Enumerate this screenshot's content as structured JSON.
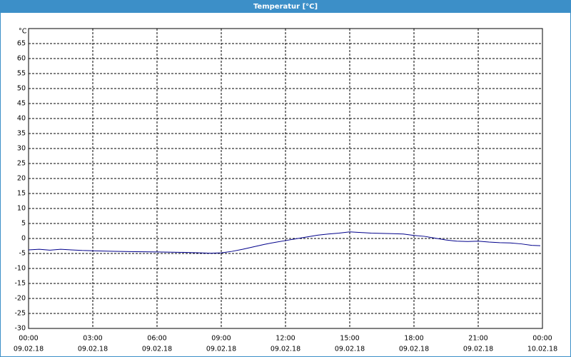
{
  "chart_data": {
    "type": "line",
    "title": "Temperatur [°C]",
    "y_label": "°C",
    "x": [
      0,
      0.5,
      1,
      1.5,
      2,
      2.5,
      3,
      3.5,
      4,
      5,
      6,
      7,
      8,
      8.5,
      9,
      9.5,
      10,
      10.5,
      11,
      11.5,
      12,
      12.5,
      13,
      13.5,
      14,
      14.5,
      15,
      15.5,
      16,
      17,
      17.5,
      18,
      18.5,
      19,
      19.5,
      20,
      20.5,
      21,
      21.5,
      22,
      22.5,
      23,
      23.5,
      23.9
    ],
    "series": [
      {
        "name": "Temperatur",
        "color": "#00008b",
        "values": [
          -3.8,
          -3.6,
          -3.9,
          -3.6,
          -3.8,
          -4.0,
          -4.1,
          -4.2,
          -4.3,
          -4.4,
          -4.5,
          -4.6,
          -4.8,
          -4.9,
          -4.8,
          -4.3,
          -3.6,
          -2.8,
          -2.0,
          -1.3,
          -0.7,
          -0.1,
          0.5,
          1.1,
          1.5,
          1.8,
          2.2,
          2.0,
          1.8,
          1.6,
          1.5,
          1.0,
          0.7,
          0.1,
          -0.5,
          -0.9,
          -1.0,
          -0.9,
          -1.2,
          -1.4,
          -1.5,
          -1.8,
          -2.3,
          -2.4
        ]
      }
    ],
    "xlim": [
      0,
      24
    ],
    "xticks": [
      {
        "value": 0,
        "label": "00:00",
        "date": "09.02.18"
      },
      {
        "value": 3,
        "label": "03:00",
        "date": "09.02.18"
      },
      {
        "value": 6,
        "label": "06:00",
        "date": "09.02.18"
      },
      {
        "value": 9,
        "label": "09:00",
        "date": "09.02.18"
      },
      {
        "value": 12,
        "label": "12:00",
        "date": "09.02.18"
      },
      {
        "value": 15,
        "label": "15:00",
        "date": "09.02.18"
      },
      {
        "value": 18,
        "label": "18:00",
        "date": "09.02.18"
      },
      {
        "value": 21,
        "label": "21:00",
        "date": "09.02.18"
      },
      {
        "value": 24,
        "label": "00:00",
        "date": "10.02.18"
      }
    ],
    "ylim": [
      -30,
      70
    ],
    "yticks": [
      -30,
      -25,
      -20,
      -15,
      -10,
      -5,
      0,
      5,
      10,
      15,
      20,
      25,
      30,
      35,
      40,
      45,
      50,
      55,
      60,
      65
    ],
    "grid": true
  }
}
